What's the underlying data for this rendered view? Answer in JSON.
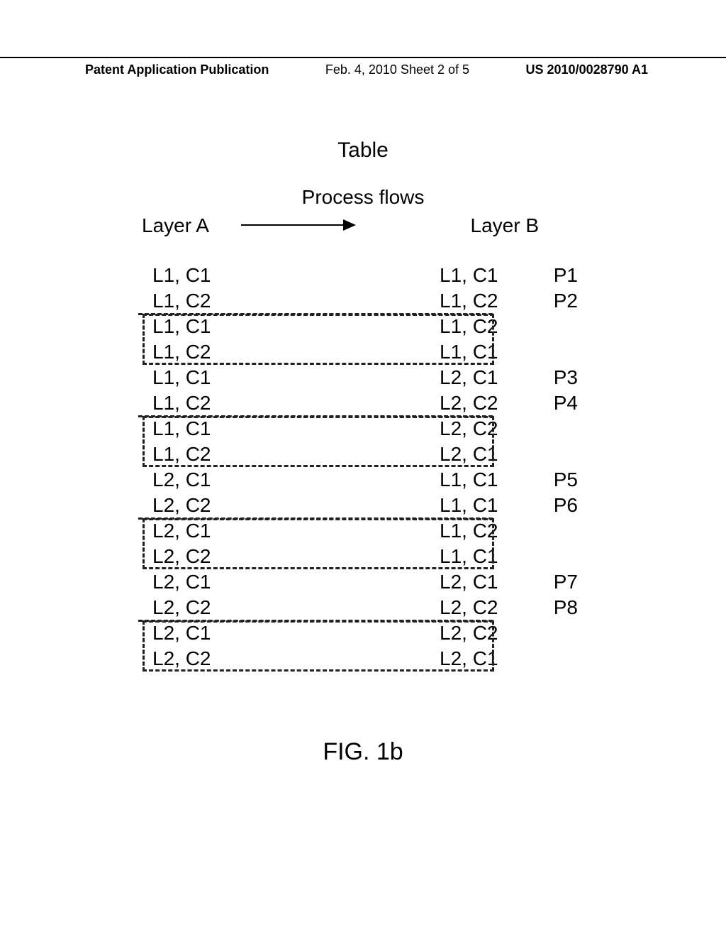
{
  "header": {
    "left": "Patent Application Publication",
    "mid": "Feb. 4, 2010  Sheet 2 of 5",
    "right": "US 2010/0028790 A1"
  },
  "title": "Table",
  "subtitle": "Process flows",
  "columns": {
    "a": "Layer A",
    "b": "Layer B"
  },
  "rows": [
    {
      "a": "L1, C1",
      "b": "L1, C1",
      "p": "P1",
      "style": "plain"
    },
    {
      "a": "L1, C2",
      "b": "L1, C2",
      "p": "P2",
      "style": "under"
    },
    {
      "a": "L1, C1",
      "b": "L1, C2",
      "p": "",
      "style": "btop"
    },
    {
      "a": "L1, C2",
      "b": "L1, C1",
      "p": "",
      "style": "bbot"
    },
    {
      "a": "L1, C1",
      "b": "L2, C1",
      "p": "P3",
      "style": "plain"
    },
    {
      "a": "L1, C2",
      "b": "L2, C2",
      "p": "P4",
      "style": "under"
    },
    {
      "a": "L1, C1",
      "b": "L2, C2",
      "p": "",
      "style": "btop"
    },
    {
      "a": "L1, C2",
      "b": "L2, C1",
      "p": "",
      "style": "bbot"
    },
    {
      "a": "L2, C1",
      "b": "L1, C1",
      "p": "P5",
      "style": "plain"
    },
    {
      "a": "L2, C2",
      "b": "L1, C1",
      "p": "P6",
      "style": "under"
    },
    {
      "a": "L2, C1",
      "b": "L1, C2",
      "p": "",
      "style": "btop"
    },
    {
      "a": "L2, C2",
      "b": "L1, C1",
      "p": "",
      "style": "bbot"
    },
    {
      "a": "L2, C1",
      "b": "L2, C1",
      "p": "P7",
      "style": "plain"
    },
    {
      "a": "L2, C2",
      "b": "L2, C2",
      "p": "P8",
      "style": "under"
    },
    {
      "a": "L2, C1",
      "b": "L2, C2",
      "p": "",
      "style": "btop"
    },
    {
      "a": "L2, C2",
      "b": "L2, C1",
      "p": "",
      "style": "bbot"
    }
  ],
  "figcap": "FIG. 1b"
}
